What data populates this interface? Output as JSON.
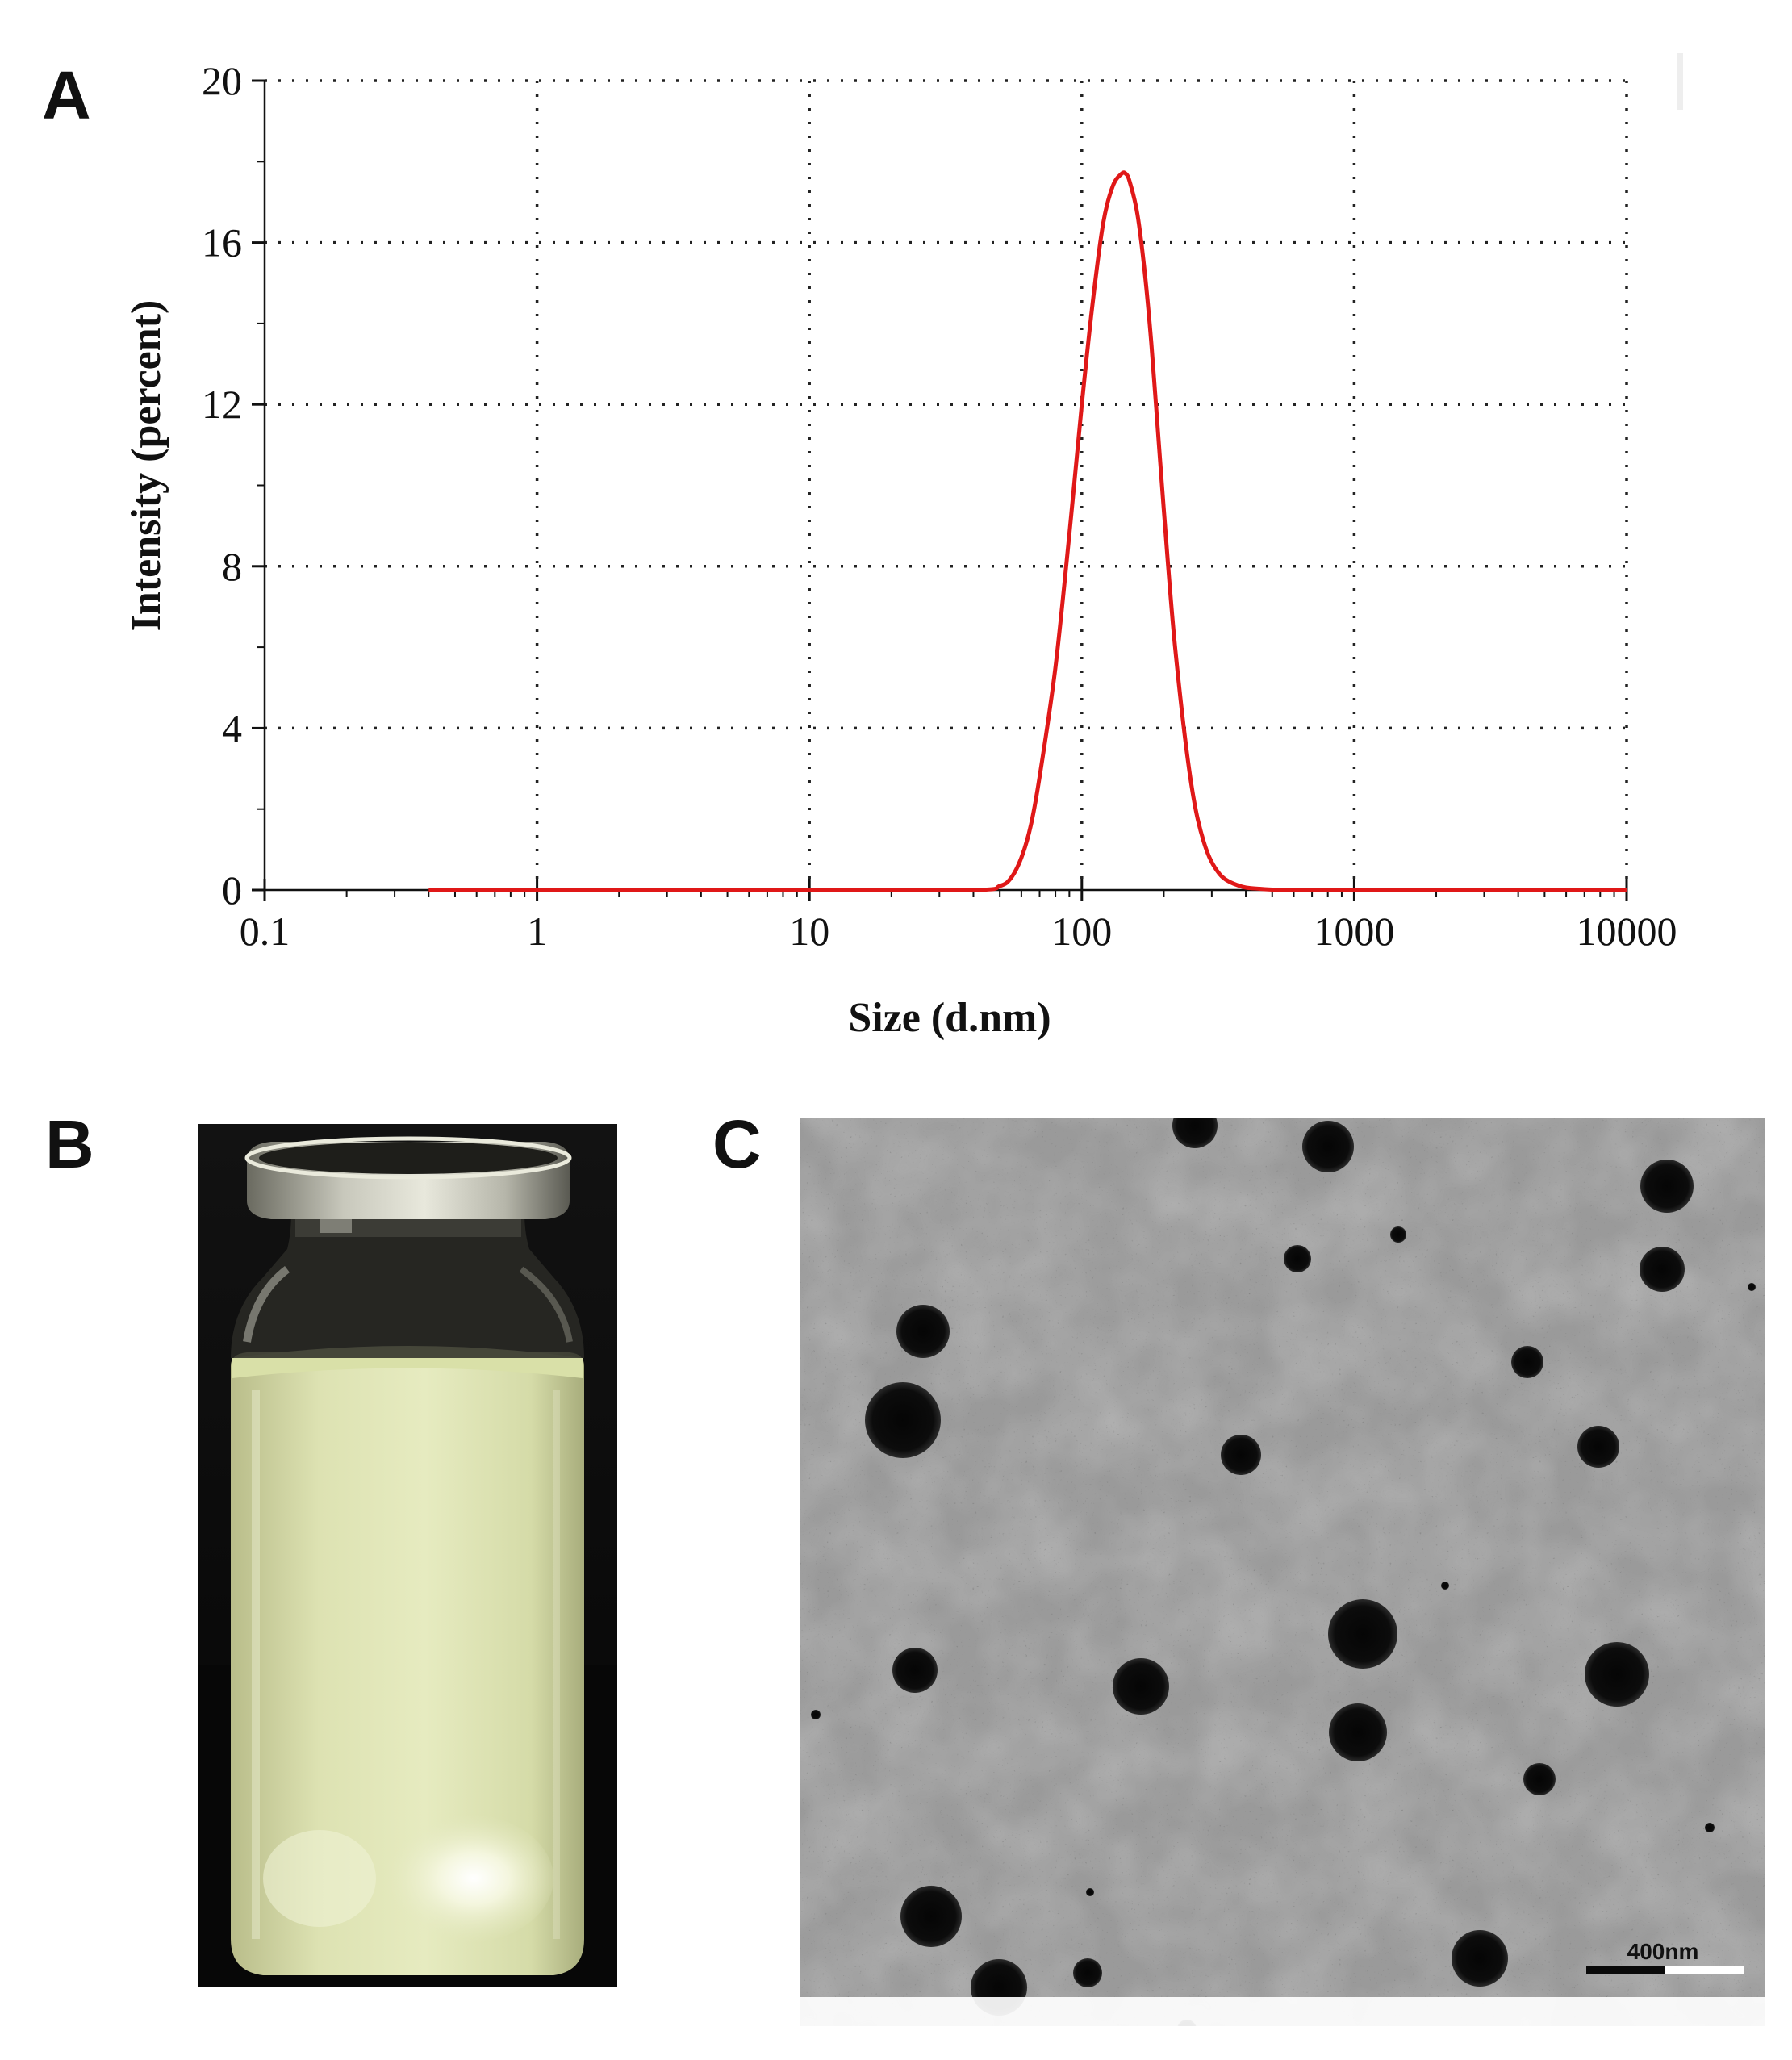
{
  "panels": {
    "a": "A",
    "b": "B",
    "c": "C"
  },
  "chart_data": {
    "type": "line",
    "xlabel": "Size (d.nm)",
    "ylabel": "Intensity (percent)",
    "x_scale": "log",
    "xlim": [
      0.1,
      10000
    ],
    "ylim": [
      0,
      20
    ],
    "x_ticks": [
      0.1,
      1,
      10,
      100,
      1000,
      10000
    ],
    "x_tick_labels": [
      "0.1",
      "1",
      "10",
      "100",
      "1000",
      "10000"
    ],
    "y_ticks": [
      0,
      4,
      8,
      12,
      16,
      20
    ],
    "y_tick_labels": [
      "0",
      "4",
      "8",
      "12",
      "16",
      "20"
    ],
    "grid": true,
    "series_color": "#e01818",
    "series": [
      {
        "x": [
          0.4,
          1,
          10,
          40,
          50,
          55,
          60,
          65,
          70,
          80,
          90,
          100,
          110,
          120,
          130,
          140,
          145,
          150,
          160,
          170,
          180,
          190,
          200,
          220,
          250,
          280,
          320,
          380,
          450,
          550,
          700,
          1000,
          10000
        ],
        "y": [
          0,
          0,
          0,
          0,
          0.1,
          0.3,
          0.8,
          1.6,
          2.8,
          5.5,
          8.8,
          12.0,
          14.6,
          16.5,
          17.4,
          17.7,
          17.7,
          17.5,
          16.7,
          15.3,
          13.5,
          11.4,
          9.4,
          6.0,
          2.8,
          1.2,
          0.4,
          0.1,
          0.03,
          0,
          0,
          0,
          0
        ]
      }
    ]
  },
  "scale_bar": {
    "label": "400nm"
  }
}
